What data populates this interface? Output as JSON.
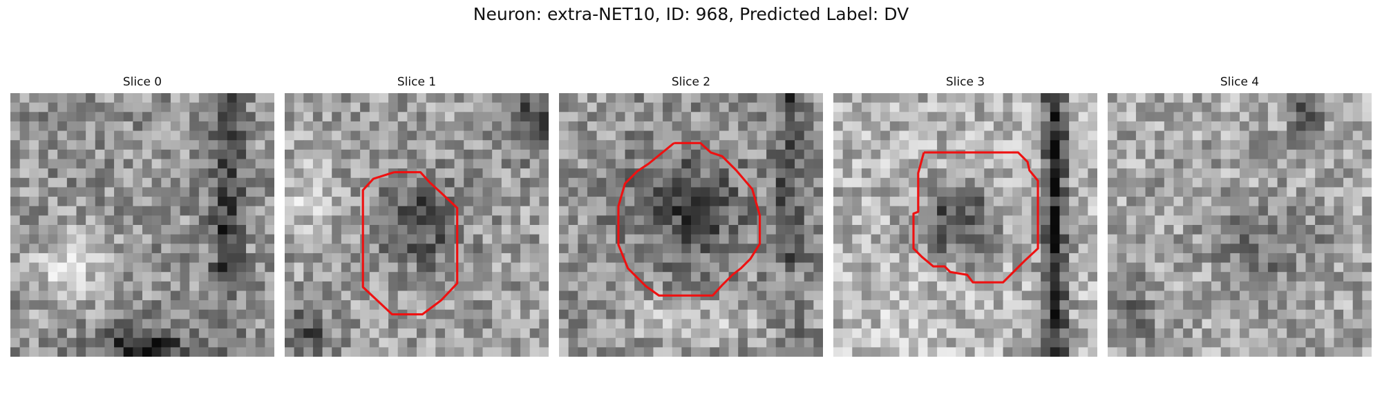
{
  "figure": {
    "title": "Neuron: extra-NET10, ID: 968, Predicted Label: DV"
  },
  "slices": [
    {
      "title": "Slice 0",
      "has_contour": false
    },
    {
      "title": "Slice 1",
      "has_contour": true
    },
    {
      "title": "Slice 2",
      "has_contour": true
    },
    {
      "title": "Slice 3",
      "has_contour": true
    },
    {
      "title": "Slice 4",
      "has_contour": false
    }
  ],
  "colors": {
    "contour": "#ee1111",
    "background": "#ffffff"
  }
}
